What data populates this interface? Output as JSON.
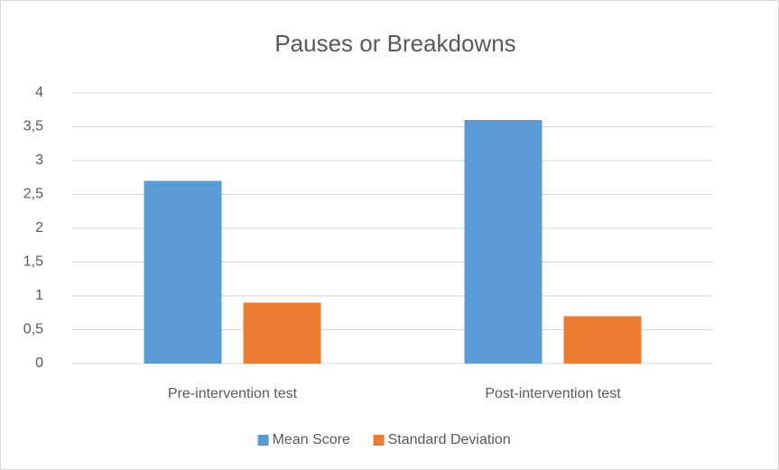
{
  "chart_data": {
    "type": "bar",
    "title": "Pauses or Breakdowns",
    "categories": [
      "Pre-intervention test",
      "Post-intervention test"
    ],
    "series": [
      {
        "name": "Mean Score",
        "color": "#5b9bd5",
        "values": [
          2.7,
          3.6
        ]
      },
      {
        "name": "Standard Deviation",
        "color": "#ed7d31",
        "values": [
          0.9,
          0.7
        ]
      }
    ],
    "ylim": [
      0,
      4
    ],
    "yticks": [
      0,
      {
        "value": 0.5,
        "label": "0,5"
      },
      1,
      {
        "value": 1.5,
        "label": "1,5"
      },
      2,
      {
        "value": 2.5,
        "label": "2,5"
      },
      3,
      {
        "value": 3.5,
        "label": "3,5"
      },
      4
    ],
    "grid": true,
    "legend": "bottom"
  }
}
